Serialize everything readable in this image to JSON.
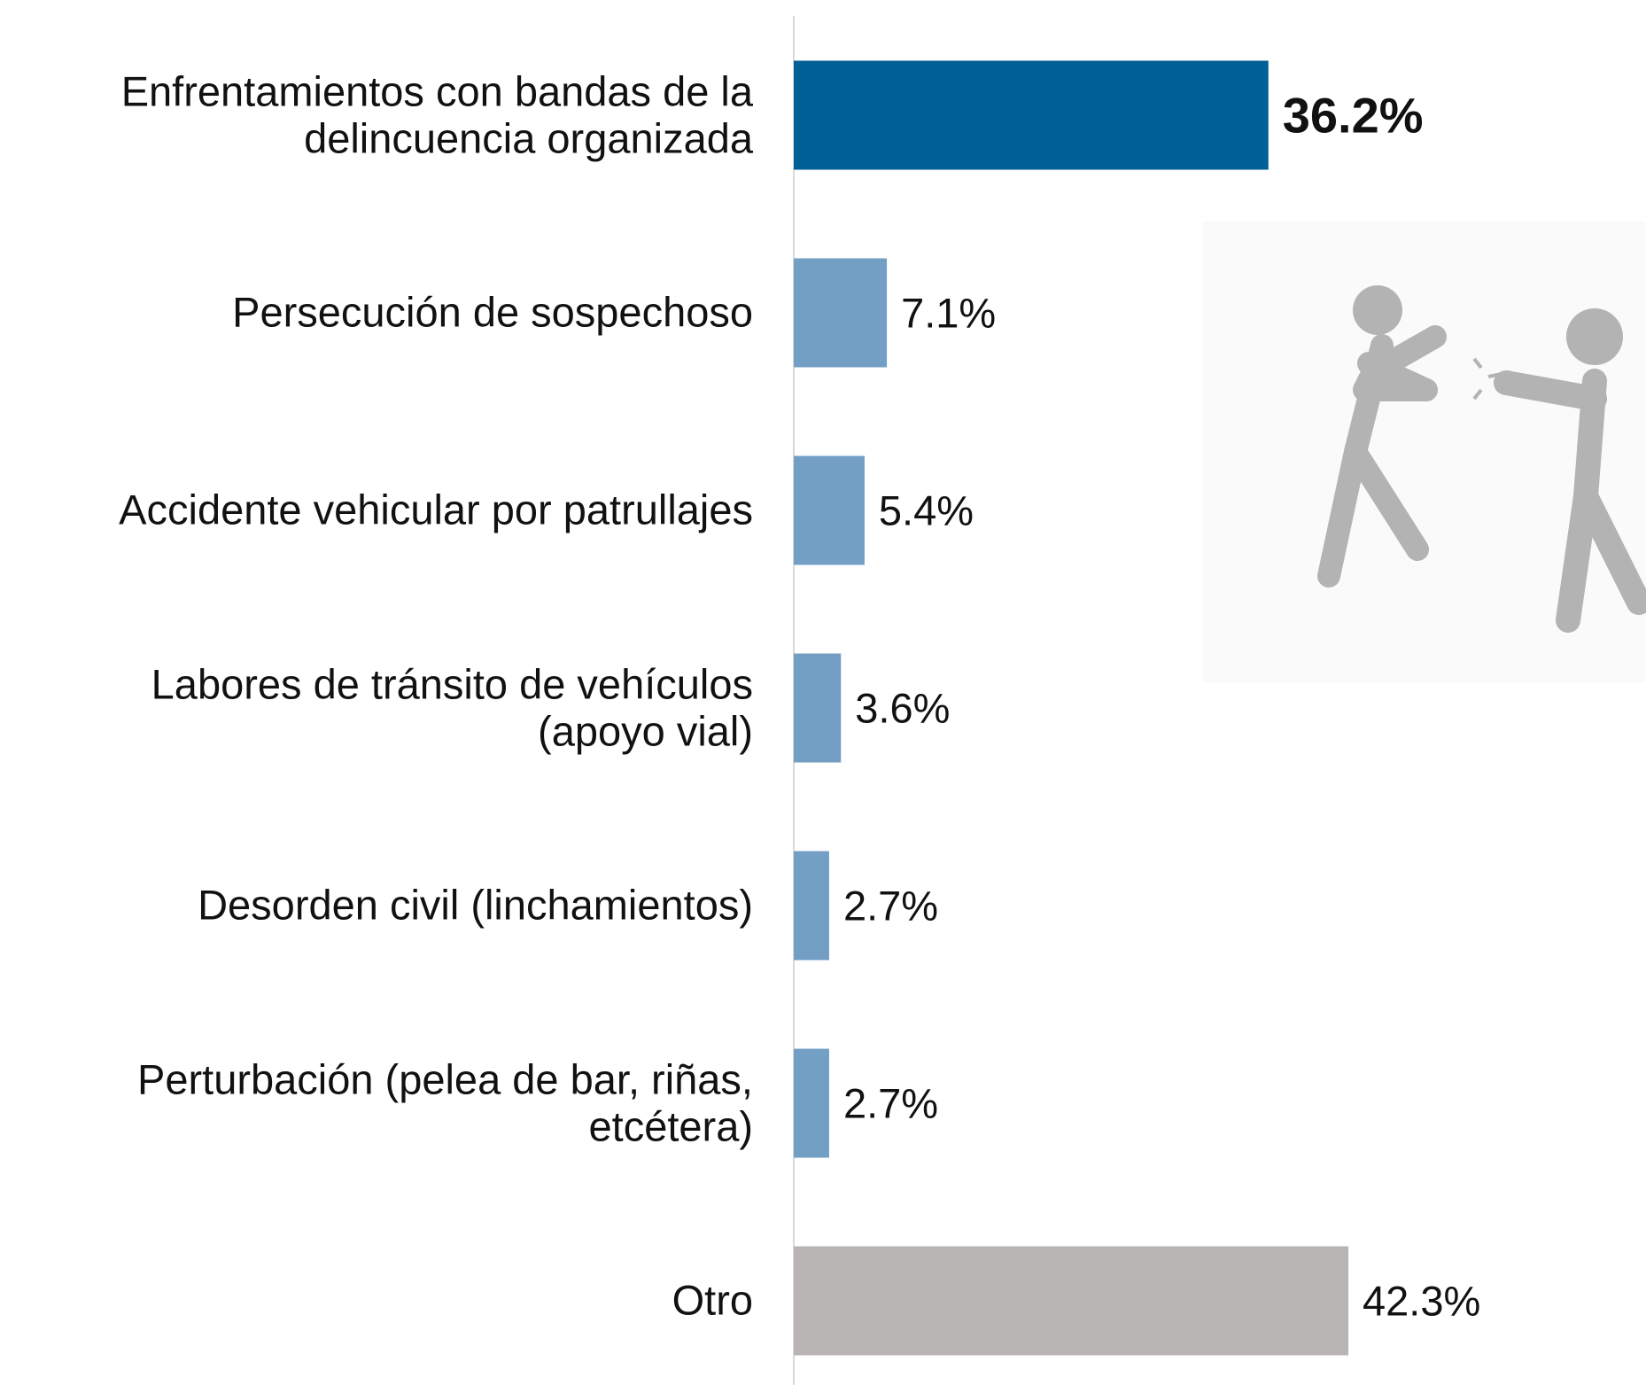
{
  "chart_data": {
    "type": "bar",
    "orientation": "horizontal",
    "categories": [
      "Enfrentamientos con bandas de la delincuencia organizada",
      "Persecución de sospechoso",
      "Accidente vehicular por patrullajes",
      "Labores de tránsito de vehículos (apoyo vial)",
      "Desorden civil (linchamientos)",
      "Perturbación (pelea de bar, riñas, etcétera)",
      "Otro"
    ],
    "values": [
      36.2,
      7.1,
      5.4,
      3.6,
      2.7,
      2.7,
      42.3
    ],
    "value_labels": [
      "36.2%",
      "7.1%",
      "5.4%",
      "3.6%",
      "2.7%",
      "2.7%",
      "42.3%"
    ],
    "colors": [
      "#005f96",
      "#739fc4",
      "#739fc4",
      "#739fc4",
      "#739fc4",
      "#739fc4",
      "#b8b4b4"
    ],
    "highlight_index": 0,
    "xlim": [
      0,
      45
    ]
  }
}
